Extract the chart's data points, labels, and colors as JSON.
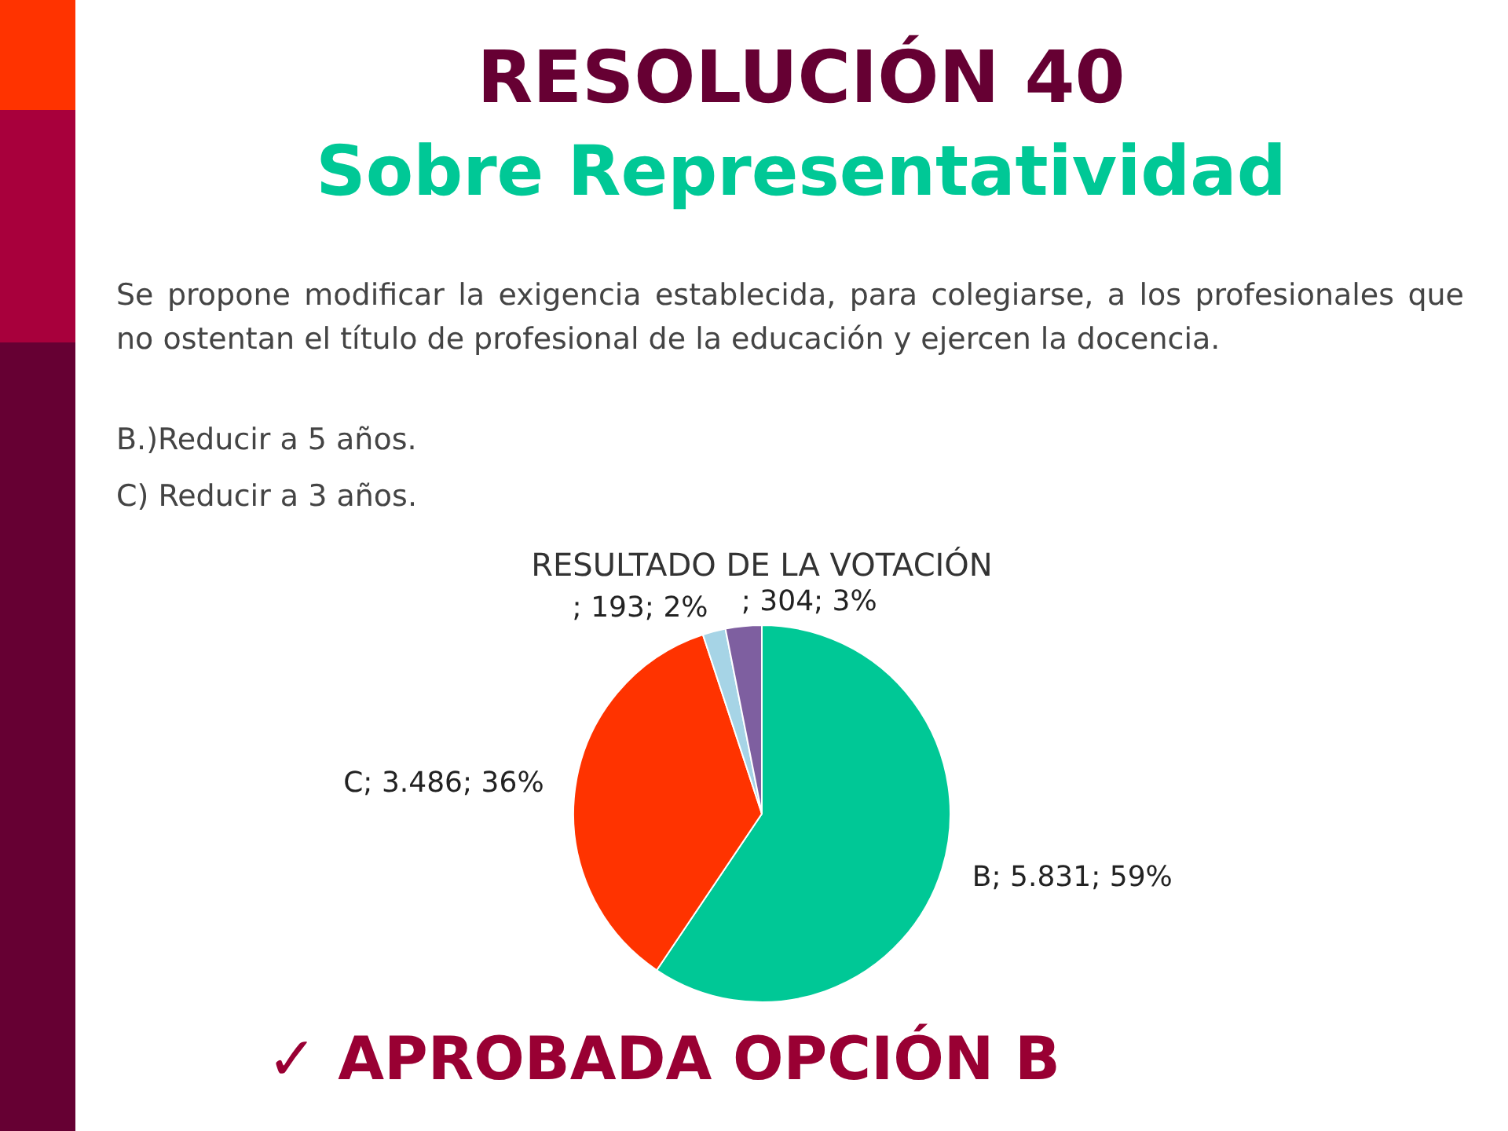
{
  "chart_data": {
    "type": "pie",
    "title": "RESOLUCIÓN 40",
    "subtitle": "Sobre Representatividad",
    "annotations": [
      "Se propone modificar la exigencia establecida, para colegiarse, a los profesionales que no ostentan el título de profesional de la educación  y ejercen la docencia.",
      "B.)Reducir a 5 años.",
      "C) Reducir a 3 años.",
      "RESULTADO DE LA VOTACIÓN",
      "✓ APROBADA OPCIÓN B"
    ],
    "categories": [
      "B",
      "C",
      null,
      null
    ],
    "values": [
      5831,
      3486,
      193,
      304
    ],
    "colors": [
      "#00c896",
      "#ff3300",
      "#a6d4e6",
      "#7e5fa0"
    ],
    "value_labels": [
      "; 5.831; 59%",
      "; 3.486; 36%",
      "; 193; 2%",
      "; 304; 3%"
    ],
    "legend": false
  }
}
